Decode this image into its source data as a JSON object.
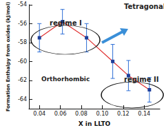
{
  "chart_data": {
    "type": "line",
    "x_label": "X in LLTO",
    "y_label": "Formation Enthalpy from oxides (kJ/mol)",
    "x": [
      0.04,
      0.062,
      0.085,
      0.11,
      0.125,
      0.145
    ],
    "values": [
      -57.5,
      -55.8,
      -57.5,
      -60.0,
      -61.5,
      -63.0
    ],
    "errors": [
      1.5,
      1.3,
      1.5,
      1.8,
      1.6,
      1.3
    ],
    "color": "#e03030",
    "marker": "square",
    "xlim": [
      0.03,
      0.155
    ],
    "xticks": [
      0.04,
      0.06,
      0.08,
      {
        "value": 0.1,
        "label": "0.10"
      },
      0.12,
      0.14
    ],
    "ylim": [
      -65,
      -54
    ],
    "yticks": [
      -64,
      -62,
      -60,
      -58,
      -56,
      -54
    ],
    "grid": false,
    "annotations": [
      "regime I",
      "Orthorhombic",
      "Tetragonal",
      "regime II"
    ]
  }
}
